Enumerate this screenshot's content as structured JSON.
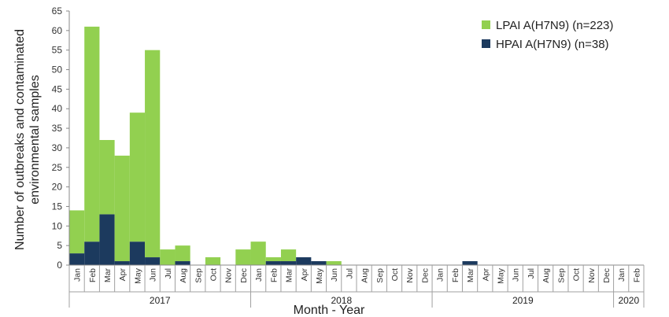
{
  "chart_data": {
    "type": "bar",
    "stacked": true,
    "title": "",
    "xlabel": "Month - Year",
    "ylabel_lines": [
      "Number of outbreaks and  contaminated",
      "environmental samples"
    ],
    "ylim": [
      0,
      65
    ],
    "yticks": [
      0,
      5,
      10,
      15,
      20,
      25,
      30,
      35,
      40,
      45,
      50,
      55,
      60,
      65
    ],
    "grid": false,
    "legend_position": "top-right",
    "years": [
      {
        "label": "2017",
        "months": 12
      },
      {
        "label": "2018",
        "months": 12
      },
      {
        "label": "2019",
        "months": 12
      },
      {
        "label": "2020",
        "months": 2
      }
    ],
    "categories": [
      "Jan",
      "Feb",
      "Mar",
      "Apr",
      "May",
      "Jun",
      "Jul",
      "Aug",
      "Sep",
      "Oct",
      "Nov",
      "Dec",
      "Jan",
      "Feb",
      "Mar",
      "Apr",
      "May",
      "Jun",
      "Jul",
      "Aug",
      "Sep",
      "Oct",
      "Nov",
      "Dec",
      "Jan",
      "Feb",
      "Mar",
      "Apr",
      "May",
      "Jun",
      "Jul",
      "Aug",
      "Sep",
      "Oct",
      "Nov",
      "Dec",
      "Jan",
      "Feb"
    ],
    "series": [
      {
        "name": "HPAI A(H7N9) (n=38)",
        "color": "#1c3a5e",
        "values": [
          3,
          6,
          13,
          1,
          6,
          2,
          0,
          1,
          0,
          0,
          0,
          0,
          0,
          1,
          1,
          2,
          1,
          0,
          0,
          0,
          0,
          0,
          0,
          0,
          0,
          0,
          1,
          0,
          0,
          0,
          0,
          0,
          0,
          0,
          0,
          0,
          0,
          0
        ]
      },
      {
        "name": "LPAI A(H7N9) (n=223)",
        "color": "#92d050",
        "values": [
          11,
          55,
          19,
          27,
          33,
          53,
          4,
          4,
          0,
          2,
          0,
          4,
          6,
          1,
          3,
          0,
          0,
          1,
          0,
          0,
          0,
          0,
          0,
          0,
          0,
          0,
          0,
          0,
          0,
          0,
          0,
          0,
          0,
          0,
          0,
          0,
          0,
          0
        ]
      }
    ],
    "legend_order": [
      "LPAI A(H7N9) (n=223)",
      "HPAI A(H7N9) (n=38)"
    ]
  }
}
